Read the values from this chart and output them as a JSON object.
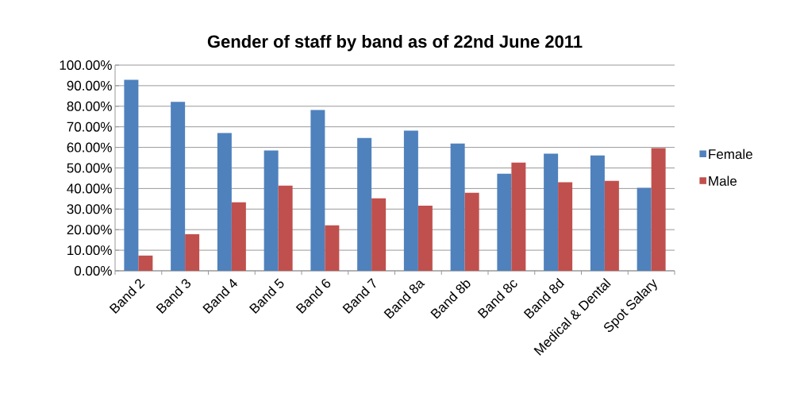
{
  "chart_data": {
    "type": "bar",
    "title": "Gender of staff by band as of 22nd June 2011",
    "categories": [
      "Band 2",
      "Band 3",
      "Band 4",
      "Band 5",
      "Band 6",
      "Band 7",
      "Band 8a",
      "Band 8b",
      "Band 8c",
      "Band 8d",
      "Medical & Dental",
      "Spot Salary"
    ],
    "series": [
      {
        "name": "Female",
        "color": "#4f81bd",
        "values": [
          92.9,
          82.1,
          67.0,
          58.5,
          78.2,
          64.6,
          68.1,
          61.9,
          47.2,
          56.9,
          56.1,
          40.3
        ]
      },
      {
        "name": "Male",
        "color": "#c0504d",
        "values": [
          7.4,
          17.8,
          33.3,
          41.4,
          22.1,
          35.2,
          31.7,
          37.9,
          52.6,
          43.0,
          43.7,
          59.6
        ]
      }
    ],
    "ylim": [
      0,
      100
    ],
    "yticks": [
      {
        "value": 0,
        "label": "0.00%"
      },
      {
        "value": 10,
        "label": "10.00%"
      },
      {
        "value": 20,
        "label": "20.00%"
      },
      {
        "value": 30,
        "label": "30.00%"
      },
      {
        "value": 40,
        "label": "40.00%"
      },
      {
        "value": 50,
        "label": "50.00%"
      },
      {
        "value": 60,
        "label": "60.00%"
      },
      {
        "value": 70,
        "label": "70.00%"
      },
      {
        "value": 80,
        "label": "80.00%"
      },
      {
        "value": 90,
        "label": "90.00%"
      },
      {
        "value": 100,
        "label": "100.00%"
      }
    ],
    "grid": "y",
    "legend": "right"
  }
}
